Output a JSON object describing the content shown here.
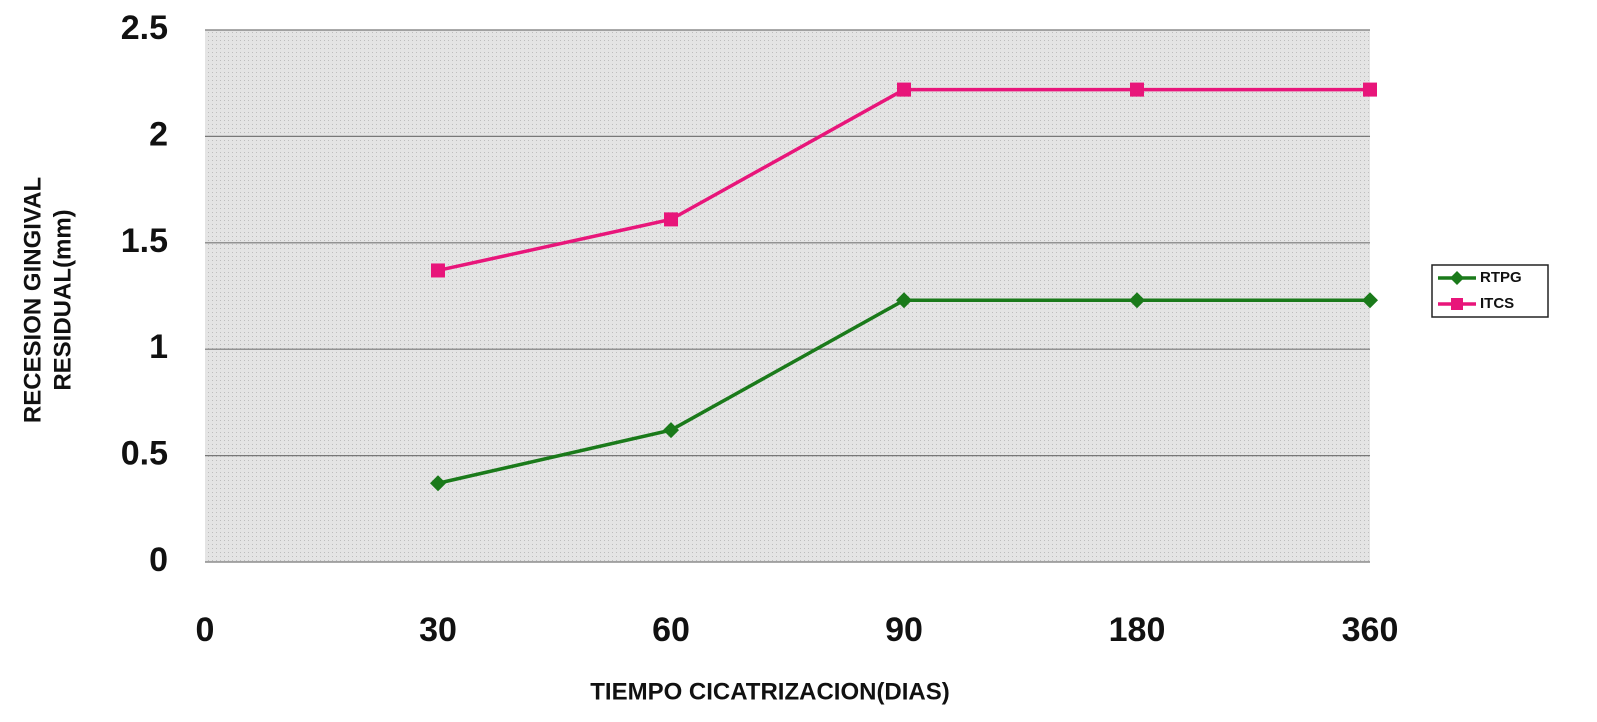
{
  "chart_data": {
    "type": "line",
    "categories": [
      "0",
      "30",
      "60",
      "90",
      "180",
      "360"
    ],
    "series": [
      {
        "name": "RTPG",
        "color": "#1a7a1a",
        "marker": "diamond",
        "values": [
          null,
          0.37,
          0.62,
          1.23,
          1.23,
          1.23
        ]
      },
      {
        "name": "ITCS",
        "color": "#e8157a",
        "marker": "square",
        "values": [
          null,
          1.37,
          1.61,
          2.22,
          2.22,
          2.22
        ]
      }
    ],
    "xlabel": "TIEMPO CICATRIZACION(DIAS)",
    "ylabel": [
      "RECESION GINGIVAL",
      "RESIDUAL(mm)"
    ],
    "ylim": [
      0,
      2.5
    ],
    "yticks": [
      0,
      0.5,
      1,
      1.5,
      2,
      2.5
    ],
    "grid": true,
    "legend": "right"
  }
}
